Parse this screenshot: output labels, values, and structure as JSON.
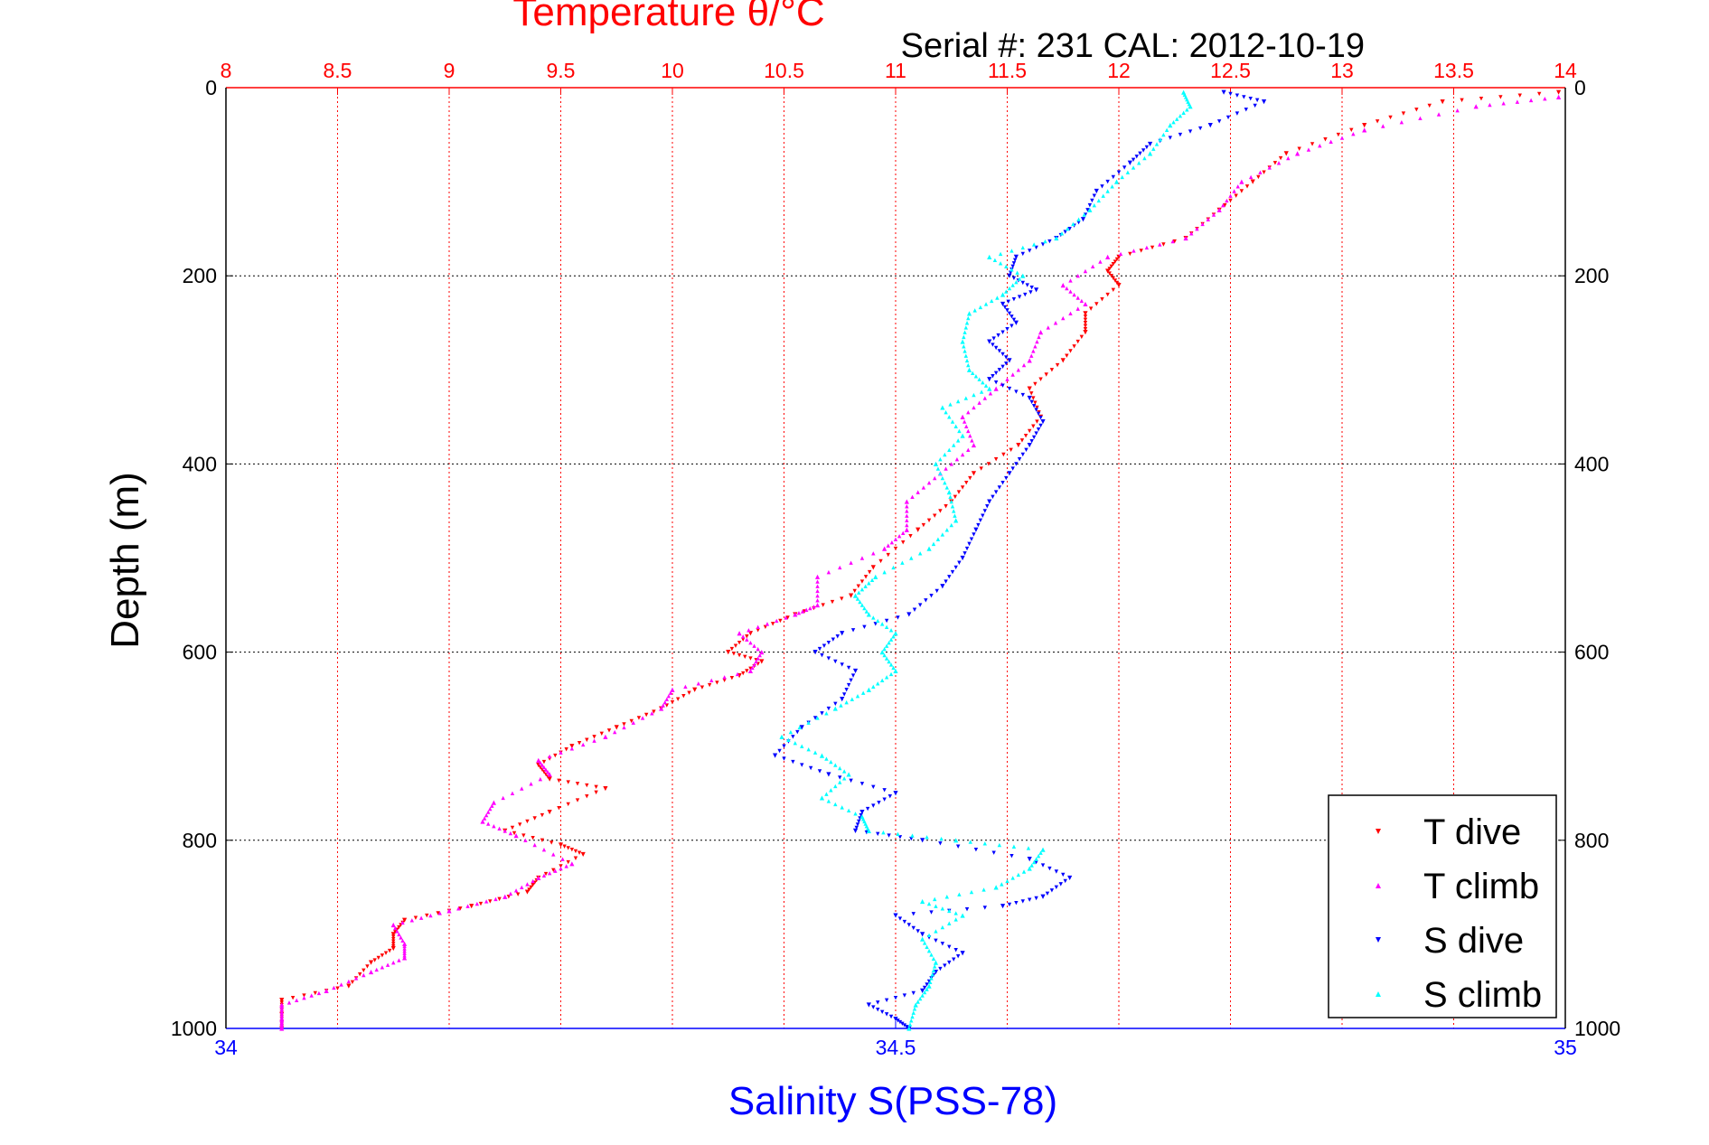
{
  "chart_data": {
    "type": "scatter",
    "title": "Temperature θ/°C",
    "subtitle": "Serial #: 231  CAL: 2012-10-19",
    "ylabel": "Depth (m)",
    "xlabel_top": "Temperature θ/°C",
    "xlabel_bottom": "Salinity S(PSS-78)",
    "ylim": [
      0,
      1000
    ],
    "y_reversed": true,
    "y_ticks": [
      "0",
      "200",
      "400",
      "600",
      "800",
      "1000"
    ],
    "x_top_lim": [
      8,
      14
    ],
    "x_top_ticks": [
      "8",
      "8.5",
      "9",
      "9.5",
      "10",
      "10.5",
      "11",
      "11.5",
      "12",
      "12.5",
      "13",
      "13.5",
      "14"
    ],
    "x_bottom_lim": [
      34,
      35
    ],
    "x_bottom_ticks": [
      "34",
      "34.5",
      "35"
    ],
    "grid": true,
    "legend_position": "bottom-right",
    "colors": {
      "temperature_axis": "#ff0000",
      "salinity_axis": "#0000ff",
      "t_dive": "#ff0000",
      "t_climb": "#ff00ff",
      "s_dive": "#0000ff",
      "s_climb": "#00ffff"
    },
    "series": [
      {
        "name": "T dive",
        "axis": "temperature",
        "marker": "triangle-down",
        "color": "#ff0000",
        "points": [
          [
            13.97,
            5
          ],
          [
            13.45,
            15
          ],
          [
            13.1,
            40
          ],
          [
            12.75,
            70
          ],
          [
            12.6,
            100
          ],
          [
            12.45,
            130
          ],
          [
            12.3,
            160
          ],
          [
            12.0,
            180
          ],
          [
            11.95,
            195
          ],
          [
            12.0,
            210
          ],
          [
            11.85,
            240
          ],
          [
            11.85,
            260
          ],
          [
            11.75,
            290
          ],
          [
            11.6,
            320
          ],
          [
            11.65,
            350
          ],
          [
            11.55,
            380
          ],
          [
            11.35,
            410
          ],
          [
            11.25,
            440
          ],
          [
            11.1,
            470
          ],
          [
            10.9,
            510
          ],
          [
            10.8,
            540
          ],
          [
            10.55,
            560
          ],
          [
            10.35,
            580
          ],
          [
            10.25,
            600
          ],
          [
            10.4,
            610
          ],
          [
            10.3,
            625
          ],
          [
            10.1,
            640
          ],
          [
            9.95,
            660
          ],
          [
            9.75,
            680
          ],
          [
            9.55,
            700
          ],
          [
            9.4,
            720
          ],
          [
            9.45,
            735
          ],
          [
            9.7,
            745
          ],
          [
            9.45,
            770
          ],
          [
            9.25,
            790
          ],
          [
            9.5,
            805
          ],
          [
            9.6,
            815
          ],
          [
            9.4,
            840
          ],
          [
            9.35,
            855
          ],
          [
            9.1,
            870
          ],
          [
            8.8,
            885
          ],
          [
            8.75,
            900
          ],
          [
            8.75,
            915
          ],
          [
            8.65,
            930
          ],
          [
            8.55,
            955
          ],
          [
            8.25,
            970
          ],
          [
            8.25,
            985
          ],
          [
            8.25,
            1000
          ]
        ]
      },
      {
        "name": "T climb",
        "axis": "temperature",
        "marker": "triangle-up",
        "color": "#ff00ff",
        "points": [
          [
            13.97,
            10
          ],
          [
            13.6,
            20
          ],
          [
            13.1,
            45
          ],
          [
            12.8,
            70
          ],
          [
            12.55,
            100
          ],
          [
            12.45,
            130
          ],
          [
            12.3,
            160
          ],
          [
            11.95,
            180
          ],
          [
            11.75,
            210
          ],
          [
            11.85,
            230
          ],
          [
            11.65,
            260
          ],
          [
            11.6,
            290
          ],
          [
            11.45,
            320
          ],
          [
            11.3,
            350
          ],
          [
            11.35,
            380
          ],
          [
            11.2,
            410
          ],
          [
            11.05,
            440
          ],
          [
            11.05,
            470
          ],
          [
            10.95,
            490
          ],
          [
            10.65,
            520
          ],
          [
            10.65,
            550
          ],
          [
            10.55,
            560
          ],
          [
            10.3,
            580
          ],
          [
            10.4,
            600
          ],
          [
            10.35,
            620
          ],
          [
            10.0,
            640
          ],
          [
            9.95,
            660
          ],
          [
            9.7,
            690
          ],
          [
            9.4,
            715
          ],
          [
            9.45,
            730
          ],
          [
            9.2,
            760
          ],
          [
            9.15,
            780
          ],
          [
            9.3,
            795
          ],
          [
            9.55,
            825
          ],
          [
            9.4,
            840
          ],
          [
            9.25,
            860
          ],
          [
            9.0,
            875
          ],
          [
            8.75,
            890
          ],
          [
            8.8,
            910
          ],
          [
            8.8,
            925
          ],
          [
            8.65,
            940
          ],
          [
            8.45,
            960
          ],
          [
            8.25,
            975
          ],
          [
            8.25,
            990
          ],
          [
            8.25,
            1000
          ]
        ]
      },
      {
        "name": "S dive",
        "axis": "salinity",
        "marker": "triangle-down",
        "color": "#0000ff",
        "points": [
          [
            34.745,
            5
          ],
          [
            34.775,
            15
          ],
          [
            34.735,
            40
          ],
          [
            34.69,
            60
          ],
          [
            34.675,
            80
          ],
          [
            34.65,
            110
          ],
          [
            34.64,
            140
          ],
          [
            34.62,
            160
          ],
          [
            34.59,
            180
          ],
          [
            34.585,
            200
          ],
          [
            34.605,
            215
          ],
          [
            34.58,
            230
          ],
          [
            34.59,
            250
          ],
          [
            34.57,
            270
          ],
          [
            34.585,
            290
          ],
          [
            34.57,
            310
          ],
          [
            34.6,
            330
          ],
          [
            34.61,
            355
          ],
          [
            34.6,
            380
          ],
          [
            34.585,
            410
          ],
          [
            34.57,
            440
          ],
          [
            34.56,
            470
          ],
          [
            34.55,
            500
          ],
          [
            34.535,
            530
          ],
          [
            34.51,
            560
          ],
          [
            34.46,
            580
          ],
          [
            34.44,
            600
          ],
          [
            34.47,
            620
          ],
          [
            34.46,
            650
          ],
          [
            34.43,
            680
          ],
          [
            34.41,
            710
          ],
          [
            34.45,
            730
          ],
          [
            34.5,
            750
          ],
          [
            34.475,
            770
          ],
          [
            34.47,
            790
          ],
          [
            34.52,
            800
          ],
          [
            34.6,
            820
          ],
          [
            34.63,
            840
          ],
          [
            34.61,
            860
          ],
          [
            34.58,
            870
          ],
          [
            34.5,
            880
          ],
          [
            34.52,
            900
          ],
          [
            34.55,
            920
          ],
          [
            34.53,
            940
          ],
          [
            34.52,
            960
          ],
          [
            34.48,
            975
          ],
          [
            34.5,
            990
          ],
          [
            34.51,
            1000
          ]
        ]
      },
      {
        "name": "S climb",
        "axis": "salinity",
        "marker": "triangle-up",
        "color": "#00ffff",
        "points": [
          [
            34.715,
            5
          ],
          [
            34.72,
            20
          ],
          [
            34.705,
            40
          ],
          [
            34.69,
            70
          ],
          [
            34.665,
            100
          ],
          [
            34.645,
            130
          ],
          [
            34.62,
            160
          ],
          [
            34.57,
            180
          ],
          [
            34.595,
            200
          ],
          [
            34.58,
            220
          ],
          [
            34.555,
            240
          ],
          [
            34.55,
            270
          ],
          [
            34.555,
            300
          ],
          [
            34.57,
            320
          ],
          [
            34.535,
            340
          ],
          [
            34.55,
            370
          ],
          [
            34.53,
            400
          ],
          [
            34.54,
            430
          ],
          [
            34.545,
            460
          ],
          [
            34.525,
            490
          ],
          [
            34.485,
            520
          ],
          [
            34.47,
            540
          ],
          [
            34.48,
            560
          ],
          [
            34.5,
            580
          ],
          [
            34.49,
            600
          ],
          [
            34.5,
            620
          ],
          [
            34.48,
            640
          ],
          [
            34.455,
            660
          ],
          [
            34.415,
            690
          ],
          [
            34.445,
            710
          ],
          [
            34.465,
            730
          ],
          [
            34.445,
            755
          ],
          [
            34.475,
            775
          ],
          [
            34.48,
            790
          ],
          [
            34.545,
            800
          ],
          [
            34.61,
            810
          ],
          [
            34.6,
            830
          ],
          [
            34.575,
            850
          ],
          [
            34.52,
            865
          ],
          [
            34.55,
            880
          ],
          [
            34.52,
            905
          ],
          [
            34.53,
            930
          ],
          [
            34.525,
            955
          ],
          [
            34.515,
            975
          ],
          [
            34.51,
            1000
          ]
        ]
      }
    ]
  }
}
